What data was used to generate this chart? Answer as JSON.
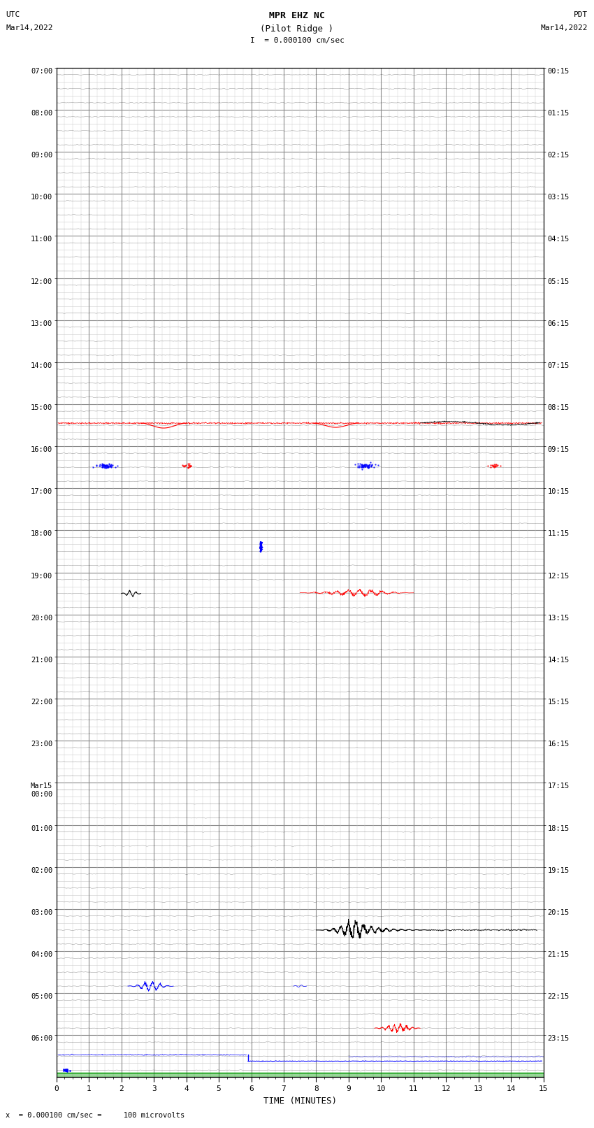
{
  "title_line1": "MPR EHZ NC",
  "title_line2": "(Pilot Ridge )",
  "title_scale": "I  = 0.000100 cm/sec",
  "left_header_line1": "UTC",
  "left_header_line2": "Mar14,2022",
  "right_header_line1": "PDT",
  "right_header_line2": "Mar14,2022",
  "bottom_label": "TIME (MINUTES)",
  "footer_text": "x  = 0.000100 cm/sec =     100 microvolts",
  "bg_color": "#ffffff",
  "major_grid_color": "#888888",
  "minor_grid_color": "#cccccc",
  "trace_color": "#000000",
  "n_major_rows": 24,
  "minor_rows_per_major": 3,
  "x_min": 0,
  "x_max": 15,
  "x_ticks_major": [
    0,
    1,
    2,
    3,
    4,
    5,
    6,
    7,
    8,
    9,
    10,
    11,
    12,
    13,
    14,
    15
  ],
  "left_labels": [
    "07:00",
    "08:00",
    "09:00",
    "10:00",
    "11:00",
    "12:00",
    "13:00",
    "14:00",
    "15:00",
    "16:00",
    "17:00",
    "18:00",
    "19:00",
    "20:00",
    "21:00",
    "22:00",
    "23:00",
    "Mar15\n00:00",
    "01:00",
    "02:00",
    "03:00",
    "04:00",
    "05:00",
    "06:00"
  ],
  "right_labels": [
    "00:15",
    "01:15",
    "02:15",
    "03:15",
    "04:15",
    "05:15",
    "06:15",
    "07:15",
    "08:15",
    "09:15",
    "10:15",
    "11:15",
    "12:15",
    "13:15",
    "14:15",
    "15:15",
    "16:15",
    "17:15",
    "18:15",
    "19:15",
    "20:15",
    "21:15",
    "22:15",
    "23:15"
  ]
}
